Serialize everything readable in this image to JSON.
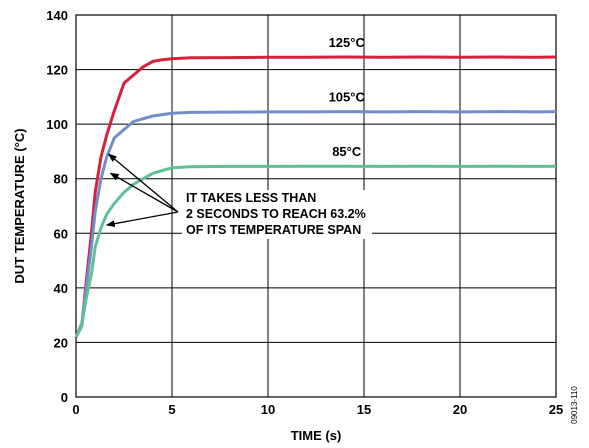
{
  "chart_data": {
    "type": "line",
    "xlabel": "TIME (s)",
    "ylabel": "DUT TEMPERATURE (°C)",
    "xlim": [
      0,
      25
    ],
    "ylim": [
      0,
      140
    ],
    "x_ticks": [
      0,
      5,
      10,
      15,
      20,
      25
    ],
    "y_ticks": [
      0,
      20,
      40,
      60,
      80,
      100,
      120,
      140
    ],
    "grid": true,
    "series": [
      {
        "name": "125°C",
        "color": "#d4213c",
        "x": [
          0,
          0.3,
          0.5,
          0.8,
          1.0,
          1.3,
          1.6,
          2.0,
          2.5,
          3.0,
          3.5,
          4.0,
          4.5,
          5.0,
          6.0,
          8.0,
          10.0,
          12.0,
          14.0,
          16.0,
          18.0,
          20.0,
          22.0,
          24.0,
          25.0
        ],
        "y": [
          22,
          26,
          40,
          60,
          75,
          88,
          96,
          105,
          115,
          118,
          121,
          123,
          123.6,
          124,
          124.3,
          124.4,
          124.5,
          124.5,
          124.6,
          124.5,
          124.6,
          124.5,
          124.6,
          124.5,
          124.6
        ]
      },
      {
        "name": "105°C",
        "color": "#6f8fc7",
        "x": [
          0,
          0.3,
          0.5,
          0.8,
          1.0,
          1.3,
          1.6,
          2.0,
          2.5,
          3.0,
          3.5,
          4.0,
          4.5,
          5.0,
          6.0,
          8.0,
          10.0,
          12.0,
          14.0,
          16.0,
          18.0,
          20.0,
          22.0,
          24.0,
          25.0
        ],
        "y": [
          22,
          27,
          38,
          55,
          68,
          80,
          88,
          95,
          98,
          101,
          102,
          103,
          103.5,
          104,
          104.3,
          104.4,
          104.5,
          104.5,
          104.6,
          104.5,
          104.6,
          104.5,
          104.6,
          104.5,
          104.6
        ]
      },
      {
        "name": "85°C",
        "color": "#5fbf95",
        "x": [
          0,
          0.3,
          0.5,
          0.8,
          1.0,
          1.3,
          1.6,
          2.0,
          2.5,
          3.0,
          3.5,
          4.0,
          4.5,
          5.0,
          6.0,
          8.0,
          10.0,
          12.0,
          14.0,
          16.0,
          18.0,
          20.0,
          22.0,
          24.0,
          25.0
        ],
        "y": [
          22,
          26,
          35,
          45,
          55,
          62,
          67,
          71,
          75,
          78,
          80,
          82,
          83,
          84,
          84.4,
          84.5,
          84.5,
          84.6,
          84.6,
          84.5,
          84.6,
          84.5,
          84.6,
          84.5,
          84.6
        ]
      }
    ],
    "annotation": {
      "lines": [
        "IT TAKES LESS THAN",
        "2 SECONDS TO REACH 63.2%",
        "OF ITS TEMPERATURE SPAN"
      ],
      "arrow_targets": [
        [
          1.7,
          89
        ],
        [
          1.8,
          82
        ],
        [
          1.6,
          63
        ]
      ]
    },
    "figure_id": "09013-110"
  }
}
